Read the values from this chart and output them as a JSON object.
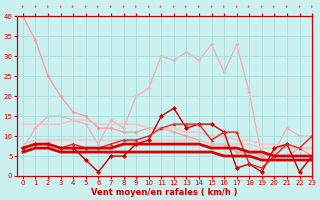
{
  "xlabel": "Vent moyen/en rafales ( km/h )",
  "ylabel": "",
  "xlim": [
    -0.5,
    23
  ],
  "ylim": [
    0,
    40
  ],
  "yticks": [
    0,
    5,
    10,
    15,
    20,
    25,
    30,
    35,
    40
  ],
  "xticks": [
    0,
    1,
    2,
    3,
    4,
    5,
    6,
    7,
    8,
    9,
    10,
    11,
    12,
    13,
    14,
    15,
    16,
    17,
    18,
    19,
    20,
    21,
    22,
    23
  ],
  "bg_color": "#caf0f0",
  "grid_color": "#aadddd",
  "lines": [
    {
      "y": [
        40,
        34,
        25,
        20,
        16,
        15,
        12,
        12,
        11,
        11,
        12,
        12,
        11,
        10,
        9,
        8,
        8,
        6,
        6,
        5,
        5,
        5,
        7,
        5
      ],
      "color": "#ff9999",
      "lw": 0.9,
      "marker": "D",
      "ms": 2.0,
      "zorder": 2
    },
    {
      "y": [
        7,
        12,
        15,
        15,
        14,
        13,
        8,
        14,
        12,
        20,
        22,
        30,
        29,
        31,
        29,
        33,
        26,
        33,
        21,
        5,
        6,
        12,
        10,
        10
      ],
      "color": "#ffaaaa",
      "lw": 0.9,
      "marker": "D",
      "ms": 2.0,
      "zorder": 1
    },
    {
      "y": [
        13,
        13,
        13,
        13,
        14,
        14,
        13,
        13,
        13,
        13,
        12,
        12,
        12,
        11,
        11,
        10,
        10,
        9,
        9,
        8,
        8,
        7,
        7,
        7
      ],
      "color": "#ffbbbb",
      "lw": 0.9,
      "marker": null,
      "ms": 0,
      "zorder": 2
    },
    {
      "y": [
        8,
        9,
        9,
        9,
        9,
        9,
        9,
        9,
        9,
        9,
        9,
        9,
        9,
        9,
        9,
        8,
        8,
        8,
        8,
        7,
        7,
        7,
        7,
        7
      ],
      "color": "#ffbbbb",
      "lw": 0.9,
      "marker": null,
      "ms": 0,
      "zorder": 2
    },
    {
      "y": [
        7,
        8,
        8,
        7,
        7,
        7,
        7,
        7,
        8,
        8,
        8,
        8,
        8,
        8,
        8,
        7,
        7,
        7,
        6,
        6,
        5,
        5,
        5,
        5
      ],
      "color": "#dd0000",
      "lw": 2.0,
      "marker": null,
      "ms": 0,
      "zorder": 4
    },
    {
      "y": [
        6,
        7,
        7,
        6,
        6,
        6,
        6,
        6,
        6,
        6,
        6,
        6,
        6,
        6,
        6,
        6,
        5,
        5,
        5,
        4,
        4,
        4,
        4,
        4
      ],
      "color": "#dd0000",
      "lw": 2.0,
      "marker": null,
      "ms": 0,
      "zorder": 4
    },
    {
      "y": [
        7,
        8,
        8,
        7,
        7,
        4,
        1,
        5,
        5,
        8,
        9,
        15,
        17,
        12,
        13,
        13,
        11,
        2,
        3,
        1,
        7,
        8,
        1,
        5
      ],
      "color": "#cc0000",
      "lw": 1.0,
      "marker": "D",
      "ms": 2.5,
      "zorder": 3
    },
    {
      "y": [
        7,
        8,
        8,
        7,
        8,
        7,
        7,
        8,
        9,
        9,
        10,
        12,
        13,
        13,
        13,
        9,
        11,
        11,
        3,
        2,
        5,
        8,
        7,
        10
      ],
      "color": "#ee2222",
      "lw": 1.0,
      "marker": "^",
      "ms": 2.5,
      "zorder": 3
    }
  ]
}
